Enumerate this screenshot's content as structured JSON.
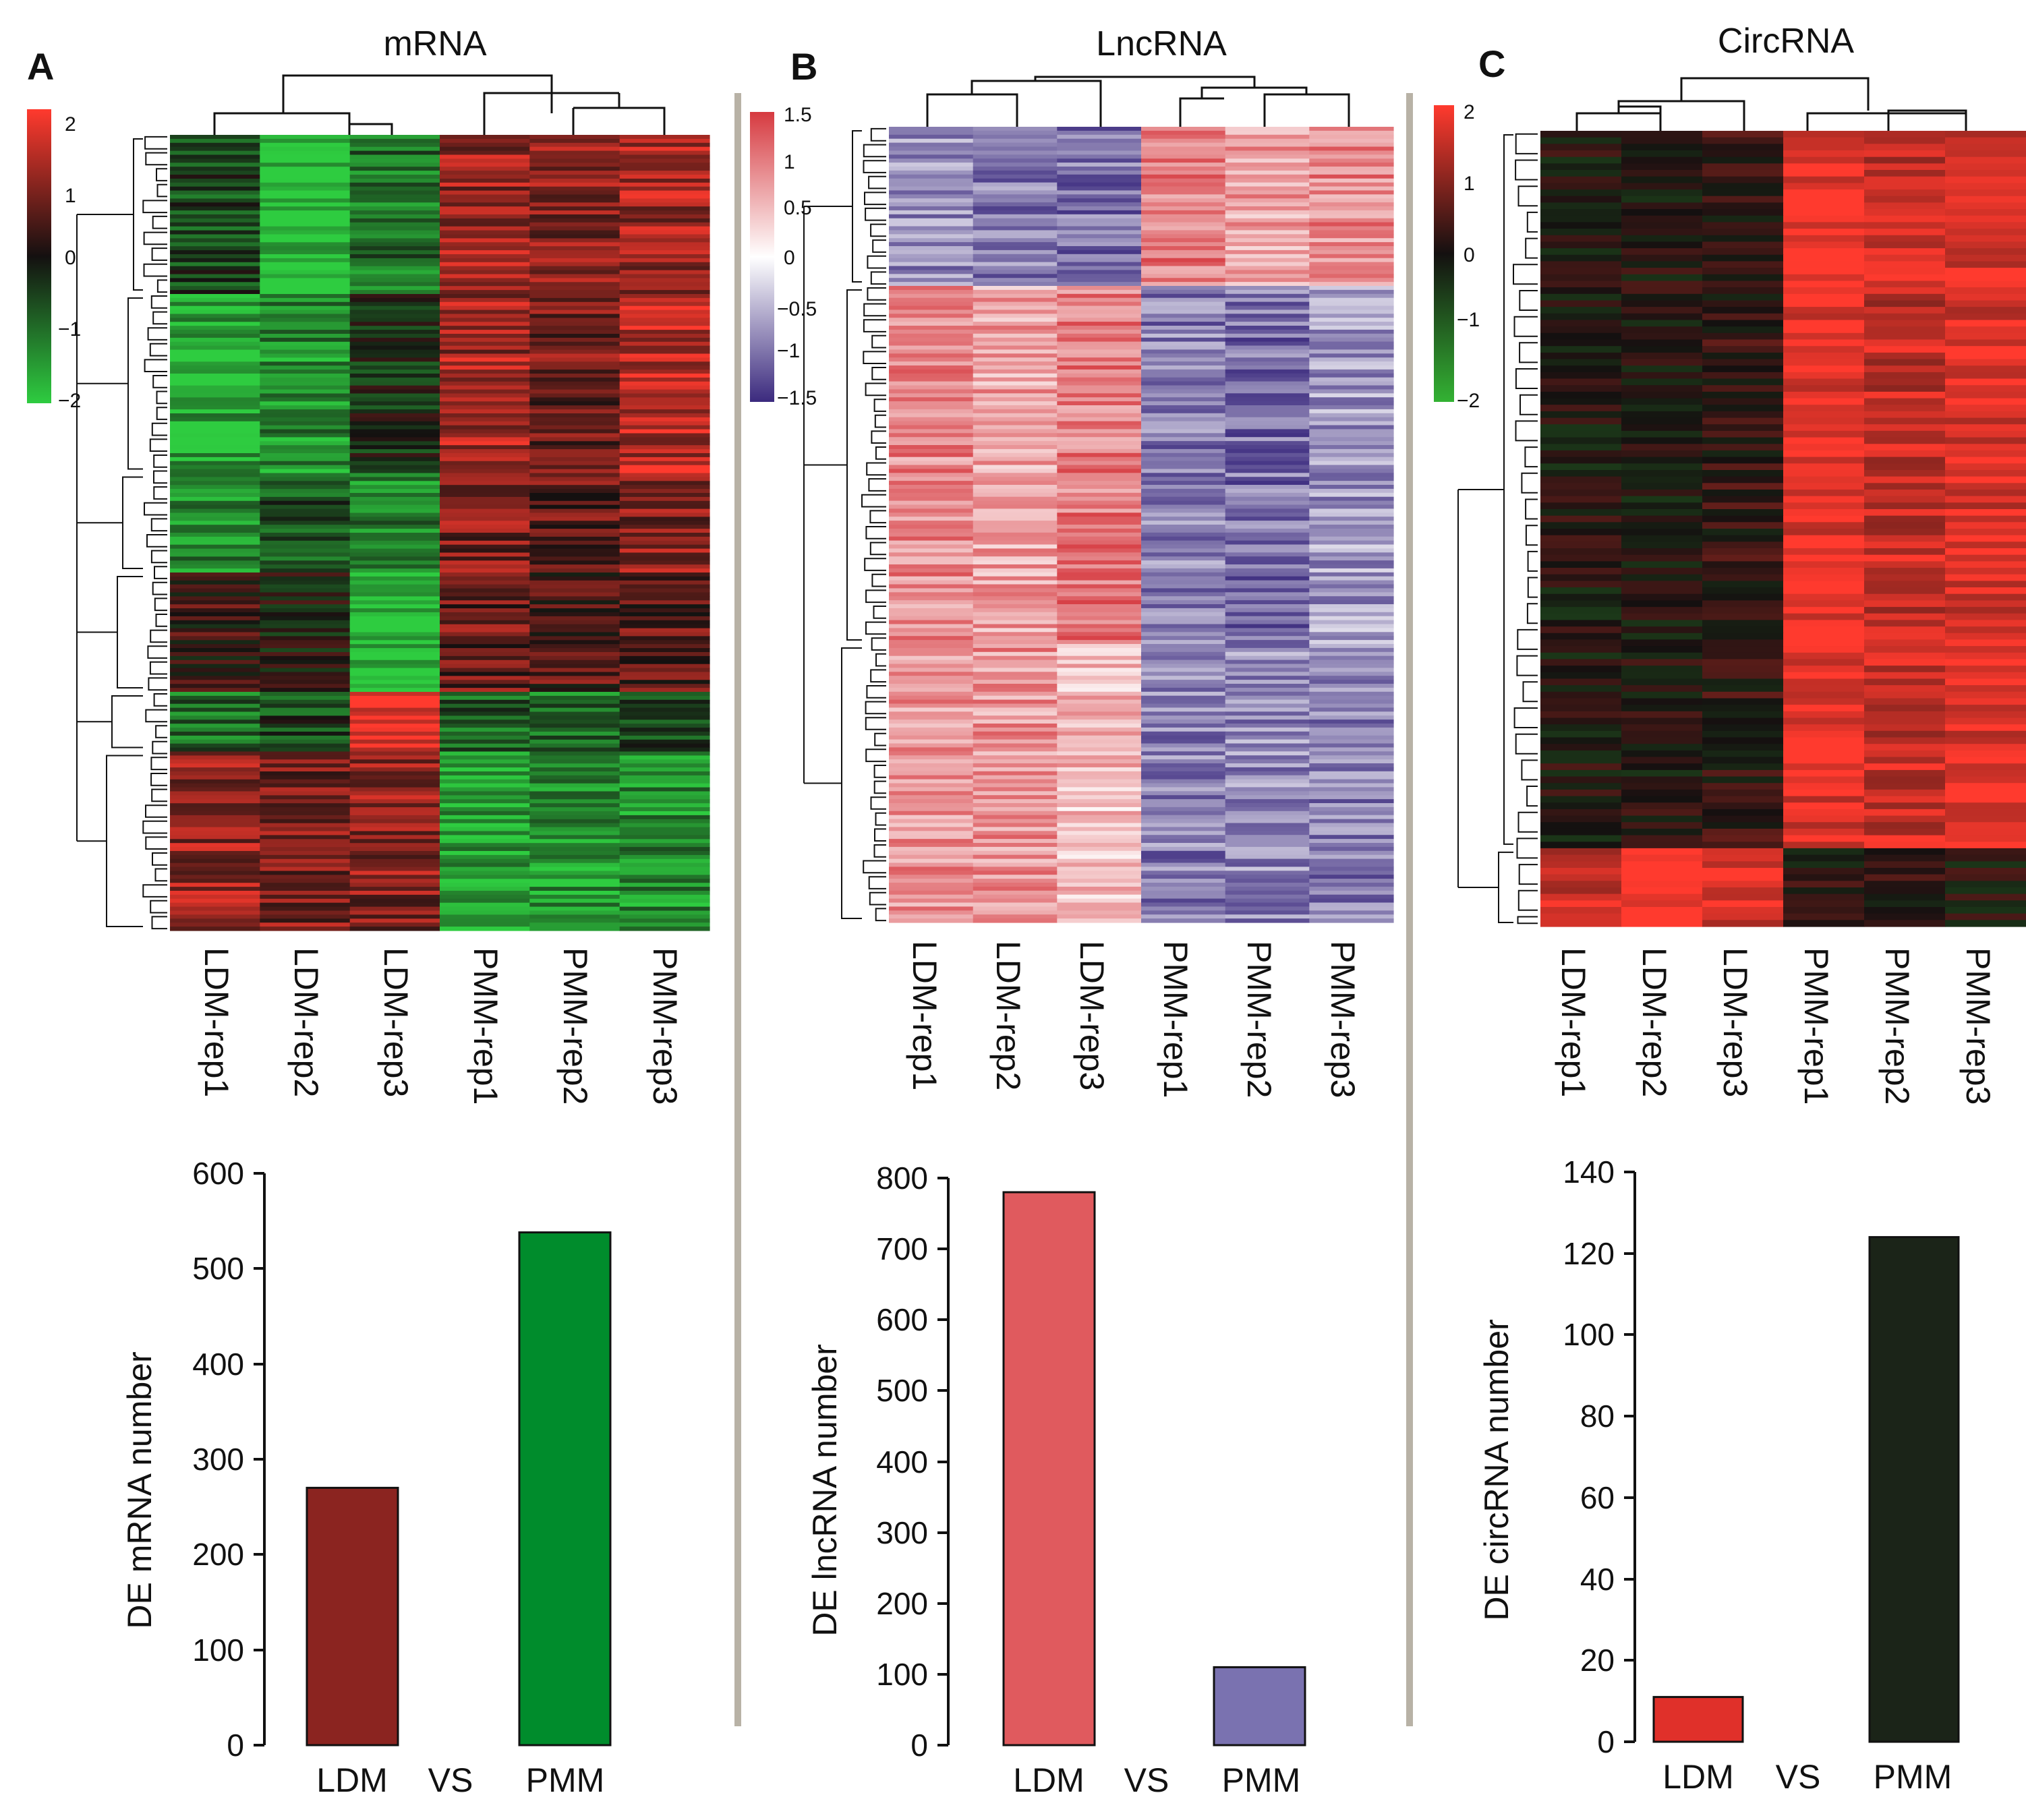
{
  "colors": {
    "mrna_low": "#2ecc40",
    "mrna_mid": "#141010",
    "mrna_high": "#ff3a2e",
    "lnc_low": "#3b2a7e",
    "lnc_mid": "#ffffff",
    "lnc_high": "#d63a40",
    "circ_low": "#33b233",
    "circ_mid": "#141010",
    "circ_high": "#ff3a2e",
    "bar_mrna_ldm": "#8b2420",
    "bar_mrna_pmm": "#008c2c",
    "bar_lnc_ldm": "#e05a5e",
    "bar_lnc_pmm": "#7a72b0",
    "bar_circ_ldm": "#e0302a",
    "bar_circ_pmm": "#1b2418",
    "divider": "#b8b2a6"
  },
  "panels": [
    {
      "letter": "A",
      "title": "mRNA",
      "scale_ticks": [
        "2",
        "1",
        "0",
        "−1",
        "−2"
      ],
      "samples": [
        "LDM-rep1",
        "LDM-rep2",
        "LDM-rep3",
        "PMM-rep1",
        "PMM-rep2",
        "PMM-rep3"
      ],
      "ylabel": "DE mRNA number",
      "y_ticks": [
        "0",
        "100",
        "200",
        "300",
        "400",
        "500",
        "600"
      ]
    },
    {
      "letter": "B",
      "title": "LncRNA",
      "scale_ticks": [
        "1.5",
        "1",
        "0.5",
        "0",
        "−0.5",
        "−1",
        "−1.5"
      ],
      "samples": [
        "LDM-rep1",
        "LDM-rep2",
        "LDM-rep3",
        "PMM-rep1",
        "PMM-rep2",
        "PMM-rep3"
      ],
      "ylabel": "DE lncRNA number",
      "y_ticks": [
        "0",
        "100",
        "200",
        "300",
        "400",
        "500",
        "600",
        "700",
        "800"
      ]
    },
    {
      "letter": "C",
      "title": "CircRNA",
      "scale_ticks": [
        "2",
        "1",
        "0",
        "−1",
        "−2"
      ],
      "samples": [
        "LDM-rep1",
        "LDM-rep2",
        "LDM-rep3",
        "PMM-rep1",
        "PMM-rep2",
        "PMM-rep3"
      ],
      "ylabel": "DE circRNA number",
      "y_ticks": [
        "0",
        "20",
        "40",
        "60",
        "80",
        "100",
        "120",
        "140"
      ]
    }
  ],
  "chart_data": [
    {
      "type": "heatmap",
      "title": "mRNA",
      "columns": [
        "LDM-rep1",
        "LDM-rep2",
        "LDM-rep3",
        "PMM-rep1",
        "PMM-rep2",
        "PMM-rep3"
      ],
      "color_range": [
        -2,
        2
      ],
      "row_blocks": [
        {
          "rows": 40,
          "values": [
            -0.5,
            -1.9,
            -1.0,
            1.1,
            1.0,
            1.2
          ]
        },
        {
          "rows": 45,
          "values": [
            -1.6,
            -1.3,
            -0.2,
            1.2,
            0.8,
            1.4
          ]
        },
        {
          "rows": 25,
          "values": [
            -1.3,
            -0.7,
            -1.2,
            0.9,
            0.6,
            1.0
          ]
        },
        {
          "rows": 30,
          "values": [
            0.3,
            -0.1,
            -1.9,
            0.7,
            0.5,
            0.6
          ]
        },
        {
          "rows": 15,
          "values": [
            -1.0,
            -0.5,
            2.0,
            -0.8,
            -1.0,
            -0.6
          ]
        },
        {
          "rows": 45,
          "values": [
            1.1,
            0.9,
            1.0,
            -1.5,
            -1.4,
            -1.3
          ]
        }
      ]
    },
    {
      "type": "heatmap",
      "title": "LncRNA",
      "columns": [
        "LDM-rep1",
        "LDM-rep2",
        "LDM-rep3",
        "PMM-rep1",
        "PMM-rep2",
        "PMM-rep3"
      ],
      "color_range": [
        -1.5,
        1.5
      ],
      "row_blocks": [
        {
          "rows": 40,
          "values": [
            -0.8,
            -0.9,
            -1.0,
            1.0,
            0.7,
            0.9
          ]
        },
        {
          "rows": 90,
          "values": [
            0.9,
            0.7,
            1.0,
            -0.9,
            -1.0,
            -0.7
          ]
        },
        {
          "rows": 70,
          "values": [
            0.8,
            0.8,
            0.5,
            -0.9,
            -0.8,
            -0.9
          ]
        }
      ]
    },
    {
      "type": "heatmap",
      "title": "CircRNA",
      "columns": [
        "LDM-rep1",
        "LDM-rep2",
        "LDM-rep3",
        "PMM-rep1",
        "PMM-rep2",
        "PMM-rep3"
      ],
      "color_range": [
        -2,
        2
      ],
      "row_blocks": [
        {
          "rows": 110,
          "values": [
            0.0,
            0.0,
            0.2,
            1.8,
            1.5,
            1.7
          ]
        },
        {
          "rows": 12,
          "values": [
            1.5,
            1.9,
            1.7,
            0.1,
            0.2,
            0.0
          ]
        }
      ]
    },
    {
      "type": "bar",
      "title": "DE mRNA",
      "categories": [
        "LDM",
        "VS",
        "PMM"
      ],
      "values": [
        270,
        null,
        538
      ],
      "xlabel": "",
      "ylabel": "DE mRNA number",
      "ylim": [
        0,
        600
      ]
    },
    {
      "type": "bar",
      "title": "DE lncRNA",
      "categories": [
        "LDM",
        "VS",
        "PMM"
      ],
      "values": [
        780,
        null,
        110
      ],
      "xlabel": "",
      "ylabel": "DE lncRNA number",
      "ylim": [
        0,
        800
      ]
    },
    {
      "type": "bar",
      "title": "DE circRNA",
      "categories": [
        "LDM",
        "VS",
        "PMM"
      ],
      "values": [
        11,
        null,
        124
      ],
      "xlabel": "",
      "ylabel": "DE circRNA number",
      "ylim": [
        0,
        140
      ]
    }
  ]
}
